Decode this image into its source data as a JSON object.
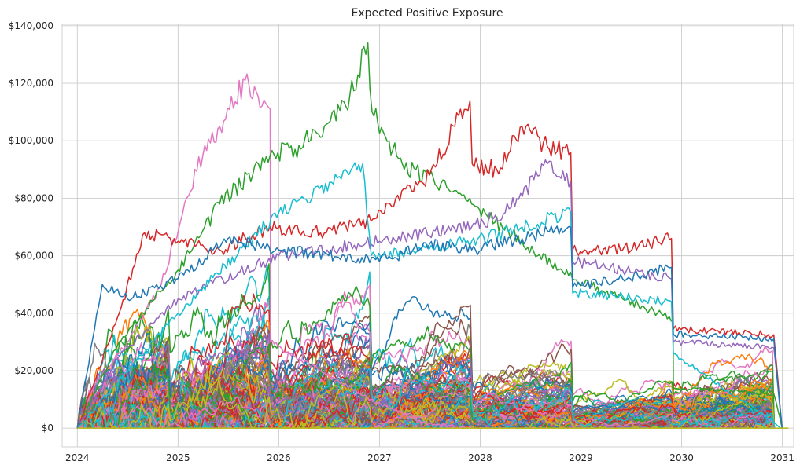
{
  "chart_data": {
    "type": "line",
    "title": "Expected Positive Exposure",
    "xlabel": "",
    "ylabel": "",
    "grid": true,
    "legend": "none",
    "x_ticks": [
      "2024",
      "2025",
      "2026",
      "2027",
      "2028",
      "2029",
      "2030",
      "2031"
    ],
    "y_ticks": [
      "$0",
      "$20,000",
      "$40,000",
      "$60,000",
      "$80,000",
      "$100,000",
      "$120,000",
      "$140,000"
    ],
    "y_tick_values": [
      0,
      20000,
      40000,
      60000,
      80000,
      100000,
      120000,
      140000
    ],
    "xlim": [
      "2023-11-07",
      "2031-02-11"
    ],
    "ylim": [
      -6500,
      140500
    ],
    "palette": [
      "#1f77b4",
      "#ff7f0e",
      "#2ca02c",
      "#d62728",
      "#9467bd",
      "#8c564b",
      "#e377c2",
      "#7f7f7f",
      "#bcbd22",
      "#17becf"
    ],
    "simulation": {
      "start": "2024-01-01",
      "end": "2030-12-31",
      "coupon_dates": [
        "2024-12-01",
        "2025-12-01",
        "2026-12-01",
        "2027-12-01",
        "2028-12-01",
        "2029-12-01",
        "2030-12-01"
      ],
      "num_paths": 200,
      "steps_per_year": 52
    },
    "highlighted_paths": [
      {
        "color": "#e377c2",
        "points": [
          [
            "2024-01-01",
            0
          ],
          [
            "2024-03-01",
            15000
          ],
          [
            "2024-07-01",
            30000
          ],
          [
            "2024-11-01",
            50000
          ],
          [
            "2025-02-01",
            80000
          ],
          [
            "2025-04-01",
            95000
          ],
          [
            "2025-06-01",
            105000
          ],
          [
            "2025-09-01",
            121000
          ],
          [
            "2025-11-01",
            112000
          ],
          [
            "2025-12-01",
            111000
          ],
          [
            "2025-12-02",
            30000
          ],
          [
            "2026-06-01",
            20000
          ],
          [
            "2026-12-01",
            10000
          ],
          [
            "2027-06-01",
            2000
          ],
          [
            "2027-12-01",
            0
          ]
        ]
      },
      {
        "color": "#2ca02c",
        "points": [
          [
            "2024-01-01",
            0
          ],
          [
            "2024-06-01",
            30000
          ],
          [
            "2025-01-01",
            55000
          ],
          [
            "2025-06-01",
            78000
          ],
          [
            "2025-12-01",
            95000
          ],
          [
            "2026-03-01",
            97000
          ],
          [
            "2026-09-01",
            112000
          ],
          [
            "2026-11-20",
            134000
          ],
          [
            "2026-12-05",
            110000
          ],
          [
            "2027-01-15",
            103000
          ],
          [
            "2027-04-01",
            90000
          ],
          [
            "2027-07-01",
            88000
          ],
          [
            "2027-12-01",
            78000
          ],
          [
            "2028-06-01",
            65000
          ],
          [
            "2028-12-01",
            52000
          ],
          [
            "2029-06-01",
            45000
          ],
          [
            "2029-12-01",
            38000
          ],
          [
            "2029-12-02",
            14000
          ],
          [
            "2030-12-01",
            12000
          ],
          [
            "2030-12-31",
            0
          ]
        ]
      },
      {
        "color": "#d62728",
        "points": [
          [
            "2024-01-01",
            0
          ],
          [
            "2024-06-01",
            40000
          ],
          [
            "2024-09-01",
            68000
          ],
          [
            "2025-01-01",
            65000
          ],
          [
            "2025-06-01",
            62000
          ],
          [
            "2025-12-01",
            70000
          ],
          [
            "2026-06-01",
            68000
          ],
          [
            "2026-12-01",
            72000
          ],
          [
            "2027-03-01",
            80000
          ],
          [
            "2027-07-01",
            88000
          ],
          [
            "2027-10-01",
            105000
          ],
          [
            "2027-11-25",
            114000
          ],
          [
            "2027-12-03",
            92000
          ],
          [
            "2028-03-01",
            90000
          ],
          [
            "2028-06-01",
            105000
          ],
          [
            "2028-09-01",
            98000
          ],
          [
            "2028-11-25",
            96000
          ],
          [
            "2028-12-02",
            62000
          ],
          [
            "2029-06-01",
            62000
          ],
          [
            "2029-11-25",
            66000
          ],
          [
            "2029-12-02",
            34500
          ],
          [
            "2030-12-01",
            32500
          ],
          [
            "2030-12-31",
            0
          ]
        ]
      },
      {
        "color": "#9467bd",
        "points": [
          [
            "2024-01-01",
            0
          ],
          [
            "2024-06-01",
            25000
          ],
          [
            "2025-01-01",
            45000
          ],
          [
            "2026-01-01",
            60000
          ],
          [
            "2027-01-01",
            65000
          ],
          [
            "2027-12-01",
            70000
          ],
          [
            "2028-04-01",
            75000
          ],
          [
            "2028-09-01",
            92000
          ],
          [
            "2028-11-25",
            86000
          ],
          [
            "2028-12-02",
            58000
          ],
          [
            "2029-06-01",
            55000
          ],
          [
            "2029-11-25",
            52000
          ],
          [
            "2029-12-02",
            30000
          ],
          [
            "2030-12-01",
            28000
          ],
          [
            "2030-12-31",
            0
          ]
        ]
      },
      {
        "color": "#17becf",
        "points": [
          [
            "2024-01-01",
            0
          ],
          [
            "2025-01-01",
            40000
          ],
          [
            "2026-01-01",
            75000
          ],
          [
            "2026-11-01",
            92000
          ],
          [
            "2026-12-02",
            60000
          ],
          [
            "2027-06-01",
            62000
          ],
          [
            "2027-12-01",
            65000
          ],
          [
            "2028-06-01",
            70000
          ],
          [
            "2028-11-25",
            75000
          ],
          [
            "2028-12-02",
            47000
          ],
          [
            "2029-06-01",
            46000
          ],
          [
            "2029-11-25",
            44000
          ],
          [
            "2029-12-02",
            26000
          ],
          [
            "2030-12-31",
            0
          ]
        ]
      },
      {
        "color": "#1f77b4",
        "points": [
          [
            "2024-01-01",
            0
          ],
          [
            "2024-04-01",
            50000
          ],
          [
            "2024-07-01",
            45000
          ],
          [
            "2025-01-01",
            52000
          ],
          [
            "2025-07-01",
            66000
          ],
          [
            "2026-01-01",
            62000
          ],
          [
            "2026-07-01",
            60000
          ],
          [
            "2027-01-01",
            58000
          ],
          [
            "2027-07-01",
            64000
          ],
          [
            "2027-12-01",
            62000
          ],
          [
            "2028-06-01",
            66000
          ],
          [
            "2028-11-25",
            70000
          ],
          [
            "2028-12-02",
            49000
          ],
          [
            "2029-06-01",
            52000
          ],
          [
            "2029-11-25",
            56000
          ],
          [
            "2029-12-02",
            32800
          ],
          [
            "2030-12-01",
            31000
          ],
          [
            "2030-12-31",
            0
          ]
        ]
      }
    ]
  }
}
